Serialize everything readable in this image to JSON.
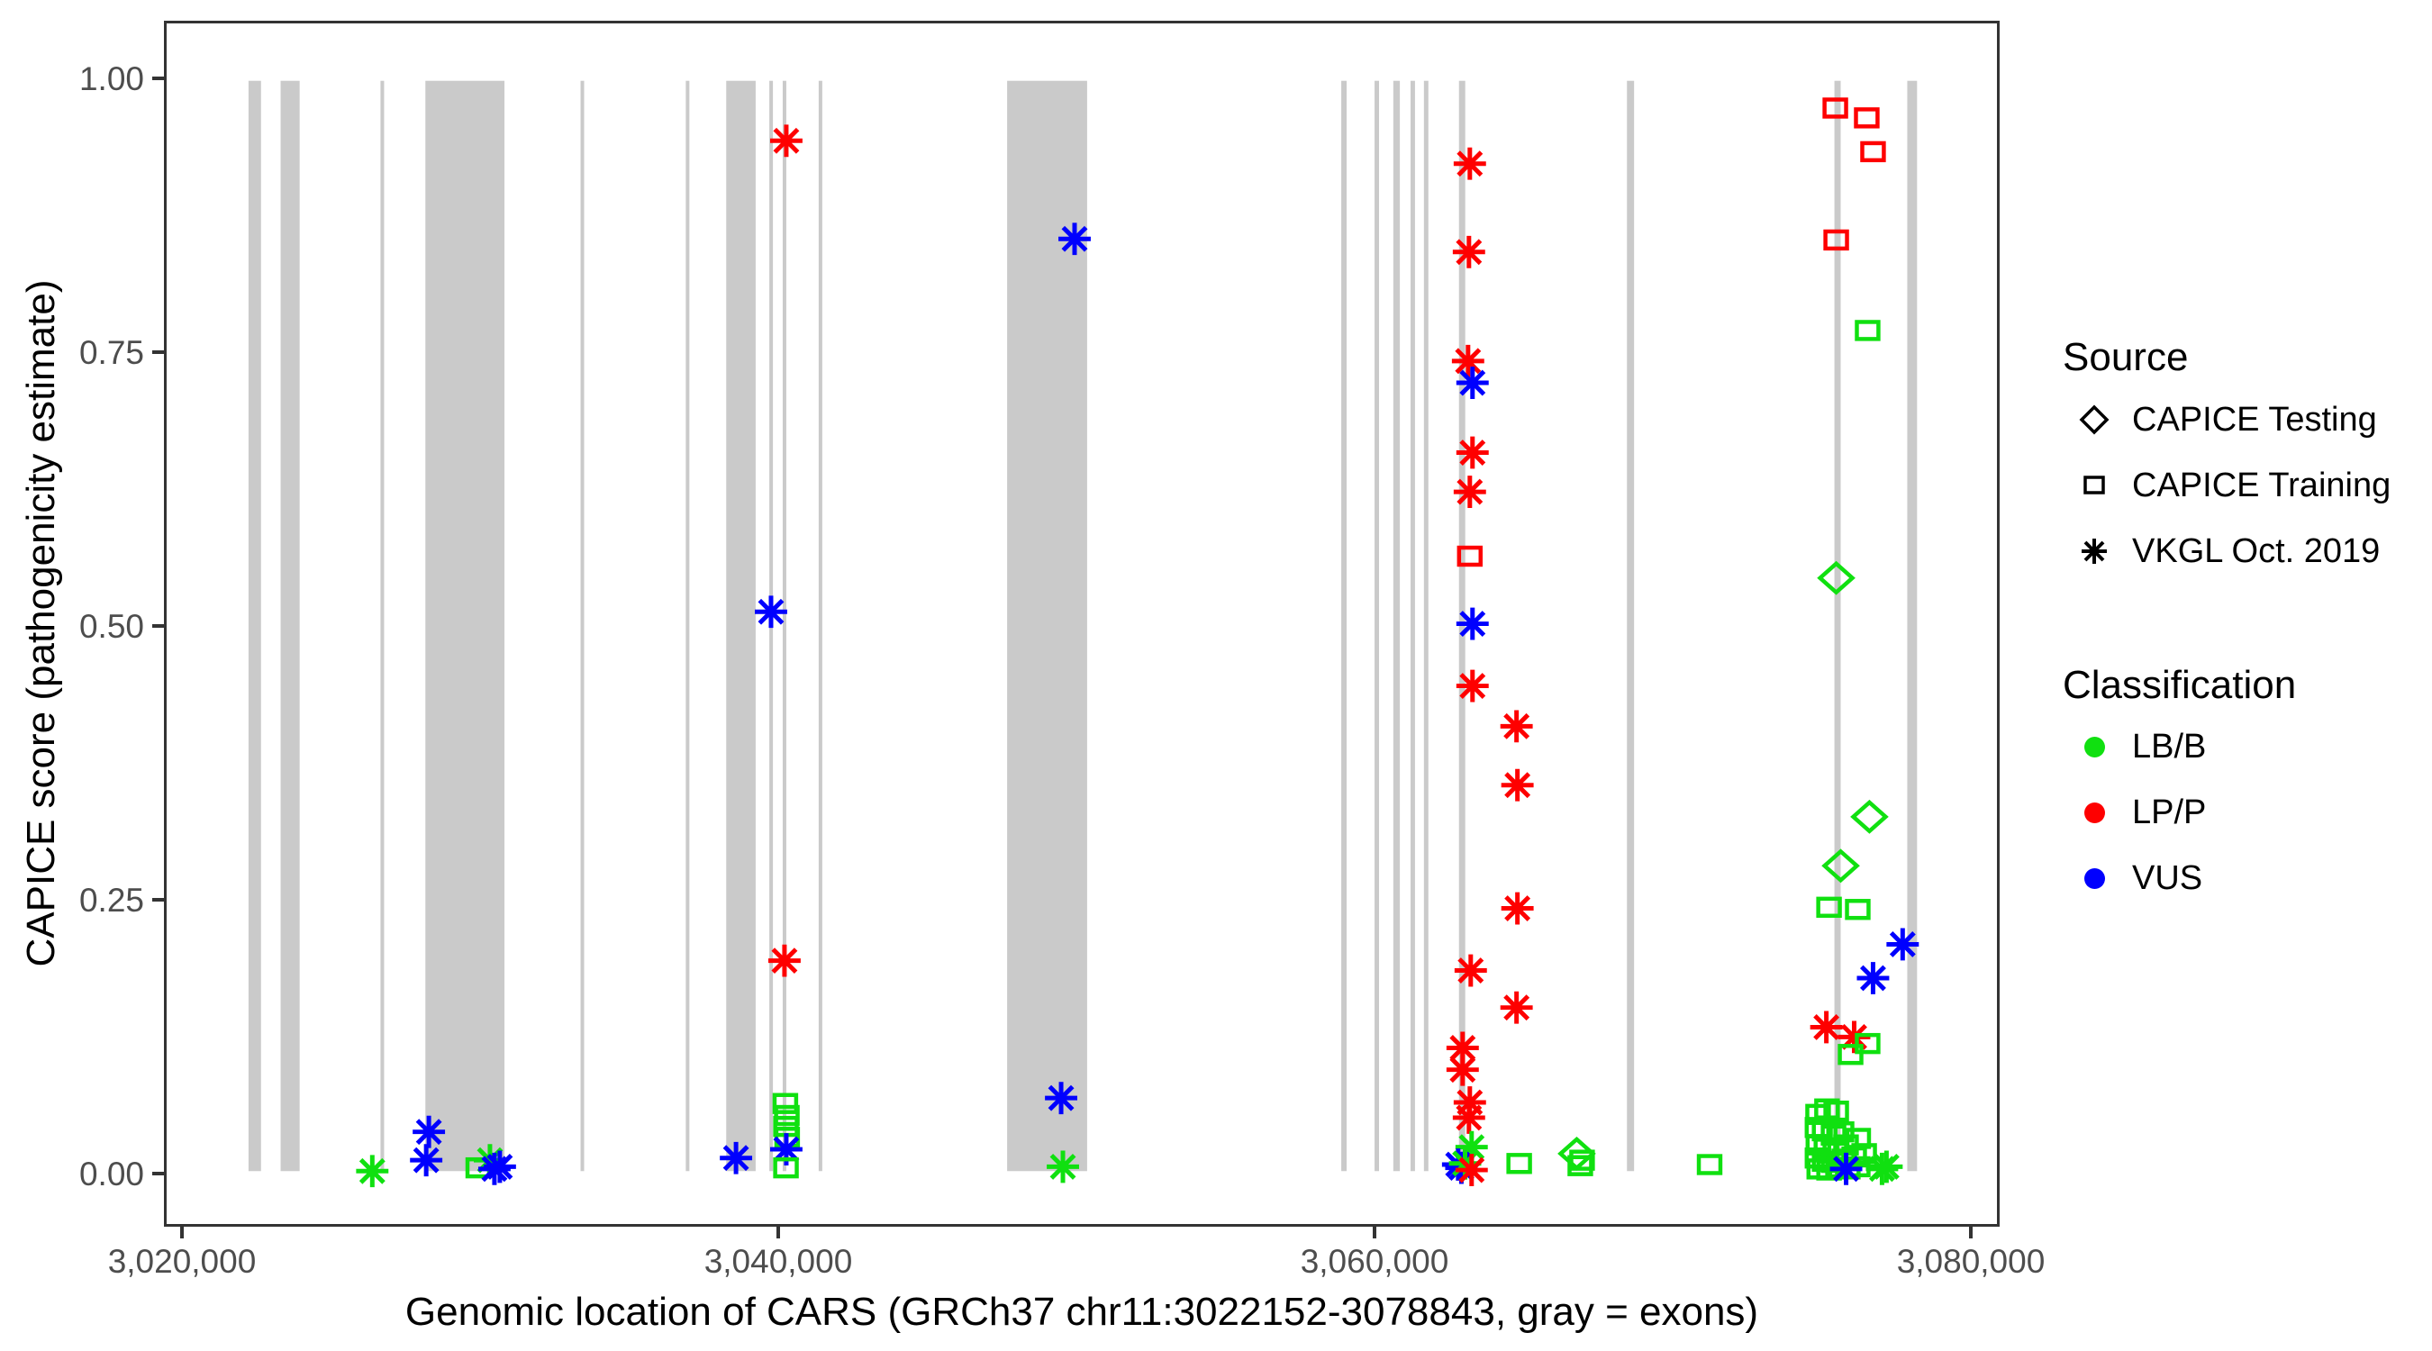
{
  "chart_data": {
    "type": "scatter",
    "title": "",
    "xlabel": "Genomic location of CARS (GRCh37 chr11:3022152-3078843, gray = exons)",
    "ylabel": "CAPICE score (pathogenicity estimate)",
    "x_domain": [
      3019400,
      3081000
    ],
    "y_domain": [
      -0.049,
      1.053
    ],
    "grid": "off",
    "legend_position": "right",
    "x_ticks": [
      {
        "value": 3020000,
        "label": "3,020,000"
      },
      {
        "value": 3040000,
        "label": "3,040,000"
      },
      {
        "value": 3060000,
        "label": "3,060,000"
      },
      {
        "value": 3080000,
        "label": "3,080,000"
      }
    ],
    "y_ticks": [
      {
        "value": 1.0,
        "label": "1.00"
      },
      {
        "value": 0.75,
        "label": "0.75"
      },
      {
        "value": 0.5,
        "label": "0.50"
      },
      {
        "value": 0.25,
        "label": "0.25"
      },
      {
        "value": 0.0,
        "label": "0.00"
      }
    ],
    "exon_note": "gray vertical bands = exons, drawn from score 0 to 1",
    "exons": [
      [
        3022150,
        3022570
      ],
      [
        3023230,
        3023870
      ],
      [
        3026590,
        3026680
      ],
      [
        3028100,
        3030760
      ],
      [
        3033320,
        3033440
      ],
      [
        3036860,
        3036980
      ],
      [
        3038220,
        3039210
      ],
      [
        3039670,
        3039790
      ],
      [
        3040120,
        3040240
      ],
      [
        3041330,
        3041450
      ],
      [
        3047670,
        3050360
      ],
      [
        3058910,
        3059090
      ],
      [
        3060030,
        3060180
      ],
      [
        3060660,
        3060880
      ],
      [
        3061240,
        3061390
      ],
      [
        3061690,
        3061840
      ],
      [
        3062870,
        3063080
      ],
      [
        3068520,
        3068760
      ],
      [
        3075500,
        3075710
      ],
      [
        3077950,
        3078280
      ]
    ],
    "shape_key": {
      "ast": "VKGL Oct. 2019",
      "sq": "CAPICE Training",
      "di": "CAPICE Testing"
    },
    "class_key": {
      "LB": "LB/B",
      "LP": "LP/P",
      "VUS": "VUS"
    },
    "points": [
      [
        3026314,
        0.0,
        "ast",
        "LB"
      ],
      [
        3028127,
        0.01,
        "ast",
        "VUS"
      ],
      [
        3028217,
        0.036,
        "ast",
        "VUS"
      ],
      [
        3029879,
        0.003,
        "sq",
        "LB"
      ],
      [
        3030272,
        0.01,
        "ast",
        "LB"
      ],
      [
        3030423,
        0.002,
        "ast",
        "VUS"
      ],
      [
        3030604,
        0.004,
        "ast",
        "VUS"
      ],
      [
        3038549,
        0.012,
        "ast",
        "VUS"
      ],
      [
        3040241,
        0.945,
        "ast",
        "LP"
      ],
      [
        3039727,
        0.513,
        "ast",
        "VUS"
      ],
      [
        3040180,
        0.193,
        "ast",
        "LP"
      ],
      [
        3040210,
        0.062,
        "sq",
        "LB"
      ],
      [
        3040260,
        0.051,
        "sq",
        "LB"
      ],
      [
        3040230,
        0.041,
        "sq",
        "LB"
      ],
      [
        3040270,
        0.031,
        "sq",
        "LB"
      ],
      [
        3040241,
        0.02,
        "ast",
        "VUS"
      ],
      [
        3040230,
        0.003,
        "sq",
        "LB"
      ],
      [
        3049939,
        0.855,
        "ast",
        "VUS"
      ],
      [
        3049486,
        0.067,
        "ast",
        "VUS"
      ],
      [
        3049546,
        0.004,
        "ast",
        "LB"
      ],
      [
        3063235,
        0.924,
        "ast",
        "LP"
      ],
      [
        3063205,
        0.843,
        "ast",
        "LP"
      ],
      [
        3063175,
        0.743,
        "ast",
        "LP"
      ],
      [
        3063325,
        0.723,
        "ast",
        "VUS"
      ],
      [
        3063325,
        0.659,
        "ast",
        "LP"
      ],
      [
        3063235,
        0.623,
        "ast",
        "LP"
      ],
      [
        3063235,
        0.564,
        "sq",
        "LP"
      ],
      [
        3063325,
        0.502,
        "ast",
        "VUS"
      ],
      [
        3063325,
        0.445,
        "ast",
        "LP"
      ],
      [
        3064806,
        0.408,
        "ast",
        "LP"
      ],
      [
        3064836,
        0.354,
        "ast",
        "LP"
      ],
      [
        3064836,
        0.241,
        "ast",
        "LP"
      ],
      [
        3063265,
        0.184,
        "ast",
        "LP"
      ],
      [
        3064806,
        0.15,
        "ast",
        "LP"
      ],
      [
        3062993,
        0.113,
        "ast",
        "LP"
      ],
      [
        3062993,
        0.093,
        "ast",
        "LP"
      ],
      [
        3063235,
        0.063,
        "ast",
        "LP"
      ],
      [
        3063205,
        0.049,
        "ast",
        "LP"
      ],
      [
        3063295,
        0.022,
        "ast",
        "LB"
      ],
      [
        3062842,
        0.006,
        "ast",
        "VUS"
      ],
      [
        3062950,
        0.003,
        "ast",
        "VUS"
      ],
      [
        3063075,
        0.007,
        "ast",
        "LB"
      ],
      [
        3063295,
        0.001,
        "ast",
        "LP"
      ],
      [
        3064896,
        0.007,
        "sq",
        "LB"
      ],
      [
        3066830,
        0.016,
        "di",
        "LB"
      ],
      [
        3066951,
        0.005,
        "sq",
        "LB"
      ],
      [
        3067011,
        0.01,
        "sq",
        "LB"
      ],
      [
        3071301,
        0.006,
        "sq",
        "LB"
      ],
      [
        3075530,
        0.975,
        "sq",
        "LP"
      ],
      [
        3076587,
        0.966,
        "sq",
        "LP"
      ],
      [
        3076799,
        0.935,
        "sq",
        "LP"
      ],
      [
        3075560,
        0.854,
        "sq",
        "LP"
      ],
      [
        3076617,
        0.771,
        "sq",
        "LB"
      ],
      [
        3075560,
        0.544,
        "di",
        "LB"
      ],
      [
        3076678,
        0.325,
        "di",
        "LB"
      ],
      [
        3075711,
        0.28,
        "di",
        "LB"
      ],
      [
        3075319,
        0.242,
        "sq",
        "LB"
      ],
      [
        3076285,
        0.24,
        "sq",
        "LB"
      ],
      [
        3077795,
        0.208,
        "ast",
        "VUS"
      ],
      [
        3076799,
        0.177,
        "ast",
        "VUS"
      ],
      [
        3075228,
        0.132,
        "ast",
        "LP"
      ],
      [
        3076164,
        0.123,
        "ast",
        "LP"
      ],
      [
        3076617,
        0.117,
        "sq",
        "LB"
      ],
      [
        3076044,
        0.107,
        "sq",
        "LB"
      ],
      [
        3074950,
        0.052,
        "sq",
        "LB"
      ],
      [
        3075250,
        0.057,
        "sq",
        "LB"
      ],
      [
        3075560,
        0.055,
        "sq",
        "LB"
      ],
      [
        3074930,
        0.04,
        "sq",
        "LB"
      ],
      [
        3075170,
        0.037,
        "sq",
        "LB"
      ],
      [
        3075470,
        0.033,
        "sq",
        "LB"
      ],
      [
        3075740,
        0.036,
        "sq",
        "LB"
      ],
      [
        3076300,
        0.03,
        "sq",
        "LB"
      ],
      [
        3074960,
        0.024,
        "sq",
        "LB"
      ],
      [
        3075230,
        0.021,
        "sq",
        "LB"
      ],
      [
        3075530,
        0.019,
        "sq",
        "LB"
      ],
      [
        3075890,
        0.024,
        "sq",
        "LB"
      ],
      [
        3074930,
        0.012,
        "sq",
        "LB"
      ],
      [
        3075170,
        0.009,
        "sq",
        "LB"
      ],
      [
        3075470,
        0.008,
        "sq",
        "LB"
      ],
      [
        3075830,
        0.011,
        "sq",
        "LB"
      ],
      [
        3076164,
        0.013,
        "sq",
        "LB"
      ],
      [
        3076500,
        0.016,
        "sq",
        "LB"
      ],
      [
        3074990,
        0.002,
        "sq",
        "LB"
      ],
      [
        3075320,
        0.001,
        "sq",
        "LB"
      ],
      [
        3075620,
        0.003,
        "sq",
        "LB"
      ],
      [
        3075950,
        0.002,
        "sq",
        "LB"
      ],
      [
        3076285,
        0.004,
        "sq",
        "LB"
      ],
      [
        3075893,
        0.002,
        "ast",
        "VUS"
      ],
      [
        3077101,
        0.002,
        "ast",
        "LB"
      ],
      [
        3077252,
        0.004,
        "ast",
        "LB"
      ]
    ]
  },
  "legend": {
    "source": {
      "title": "Source",
      "items": [
        {
          "label": "CAPICE Testing",
          "shape": "di"
        },
        {
          "label": "CAPICE Training",
          "shape": "sq"
        },
        {
          "label": "VKGL Oct. 2019",
          "shape": "ast"
        }
      ]
    },
    "classification": {
      "title": "Classification",
      "items": [
        {
          "label": "LB/B",
          "key": "LB"
        },
        {
          "label": "LP/P",
          "key": "LP"
        },
        {
          "label": "VUS",
          "key": "VUS"
        }
      ]
    }
  },
  "colors": {
    "LB": "#10e010",
    "LP": "#fe0000",
    "VUS": "#0000fe",
    "exon": "#cacaca",
    "legend_symbol": "#000000",
    "axis_text": "#4d4d4d",
    "panel_border": "#333333"
  }
}
